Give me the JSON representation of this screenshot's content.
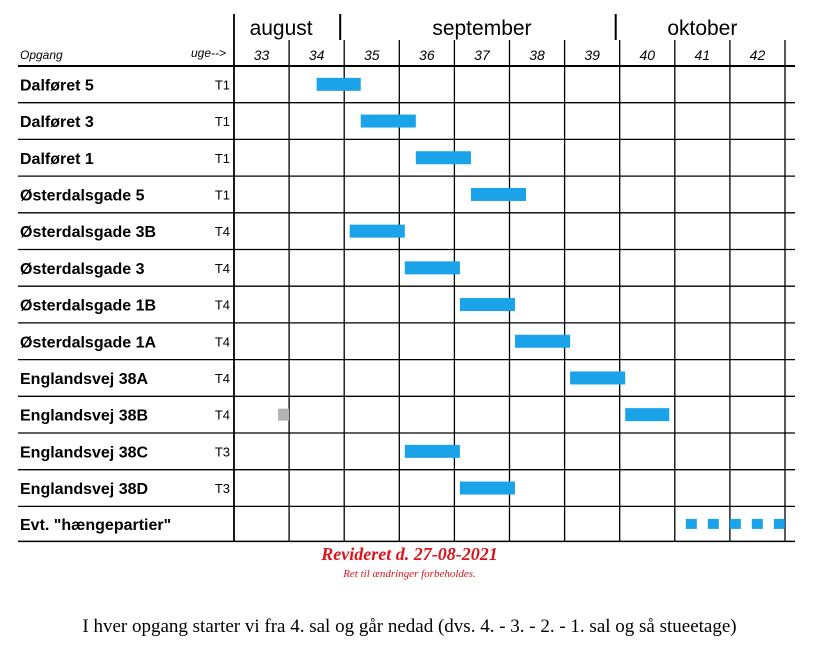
{
  "chart_data": {
    "type": "gantt",
    "header_left": "Opgang",
    "header_weeks": "uge-->",
    "months": [
      {
        "label": "august",
        "start": 33,
        "end": 35
      },
      {
        "label": "september",
        "start": 35,
        "end": 40
      },
      {
        "label": "oktober",
        "start": 40,
        "end": 43
      }
    ],
    "weeks": [
      "33",
      "34",
      "35",
      "36",
      "37",
      "38",
      "39",
      "40",
      "41",
      "42"
    ],
    "week_start": 33,
    "rows": [
      {
        "name": "Dalføret 5",
        "team": "T1",
        "tasks": [
          {
            "start": 34.5,
            "end": 35.3
          }
        ]
      },
      {
        "name": "Dalføret 3",
        "team": "T1",
        "tasks": [
          {
            "start": 35.3,
            "end": 36.3
          }
        ]
      },
      {
        "name": "Dalføret 1",
        "team": "T1",
        "tasks": [
          {
            "start": 36.3,
            "end": 37.3
          }
        ]
      },
      {
        "name": "Østerdalsgade 5",
        "team": "T1",
        "tasks": [
          {
            "start": 37.3,
            "end": 38.3
          }
        ]
      },
      {
        "name": "Østerdalsgade 3B",
        "team": "T4",
        "tasks": [
          {
            "start": 35.1,
            "end": 36.1
          }
        ]
      },
      {
        "name": "Østerdalsgade 3",
        "team": "T4",
        "tasks": [
          {
            "start": 36.1,
            "end": 37.1
          }
        ]
      },
      {
        "name": "Østerdalsgade 1B",
        "team": "T4",
        "tasks": [
          {
            "start": 37.1,
            "end": 38.1
          }
        ]
      },
      {
        "name": "Østerdalsgade 1A",
        "team": "T4",
        "tasks": [
          {
            "start": 38.1,
            "end": 39.1
          }
        ]
      },
      {
        "name": "Englandsvej 38A",
        "team": "T4",
        "tasks": [
          {
            "start": 39.1,
            "end": 40.1
          }
        ]
      },
      {
        "name": "Englandsvej 38B",
        "team": "T4",
        "tasks": [
          {
            "start": 40.1,
            "end": 40.9
          }
        ],
        "markers": [
          {
            "start": 33.8,
            "end": 34.0
          }
        ]
      },
      {
        "name": "Englandsvej 38C",
        "team": "T3",
        "tasks": [
          {
            "start": 36.1,
            "end": 37.1
          }
        ]
      },
      {
        "name": "Englandsvej 38D",
        "team": "T3",
        "tasks": [
          {
            "start": 37.1,
            "end": 38.1
          }
        ]
      },
      {
        "name": "Evt. \"hængepartier\"",
        "team": "",
        "tasks": [],
        "dashed": [
          {
            "start": 41.2,
            "end": 43.0
          }
        ]
      }
    ]
  },
  "colors": {
    "bar": "#1aa3e8",
    "marker": "#b3b3b3",
    "revised": "#d9141c"
  },
  "notes": {
    "revised": "Revideret d. 27-08-2021",
    "disclaimer": "Ret til ændringer forbeholdes.",
    "footer": "I hver opgang starter vi fra 4. sal og går nedad (dvs. 4. - 3. - 2. - 1. sal og så stueetage)"
  }
}
